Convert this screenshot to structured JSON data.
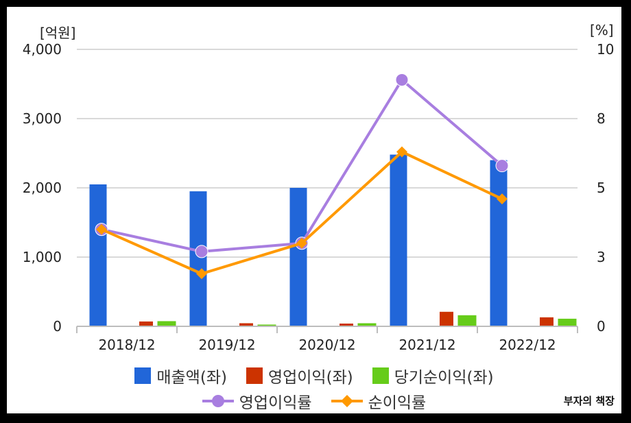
{
  "chart_data": {
    "type": "bar",
    "categories": [
      "2018/12",
      "2019/12",
      "2020/12",
      "2021/12",
      "2022/12"
    ],
    "left_axis": {
      "unit": "[억원]",
      "ylim": [
        0,
        4000
      ],
      "ticks": [
        "0",
        "1,000",
        "2,000",
        "3,000",
        "4,000"
      ],
      "tick_values": [
        0,
        1000,
        2000,
        3000,
        4000
      ]
    },
    "right_axis": {
      "unit": "[%]",
      "ylim": [
        0,
        10
      ],
      "ticks": [
        "0",
        "3",
        "5",
        "8",
        "10"
      ],
      "tick_values": [
        0,
        2.5,
        5,
        7.5,
        10
      ]
    },
    "bar_series": [
      {
        "name": "매출액(좌)",
        "color": "#2166d9",
        "values": [
          2050,
          1950,
          2000,
          2480,
          2400
        ]
      },
      {
        "name": "영업이익(좌)",
        "color": "#cc3300",
        "values": [
          70,
          45,
          40,
          210,
          130
        ]
      },
      {
        "name": "당기순이익(좌)",
        "color": "#66cc1a",
        "values": [
          75,
          25,
          45,
          160,
          110
        ]
      }
    ],
    "line_series": [
      {
        "name": "영업이익률",
        "color": "#a87ee0",
        "marker": "circle",
        "values": [
          3.5,
          2.7,
          3.0,
          8.9,
          5.8
        ]
      },
      {
        "name": "순이익률",
        "color": "#ff9900",
        "marker": "diamond",
        "values": [
          3.5,
          1.9,
          3.0,
          6.3,
          4.6
        ]
      }
    ],
    "grid": true,
    "legend": "bottom"
  },
  "watermark": "부자의 책장"
}
